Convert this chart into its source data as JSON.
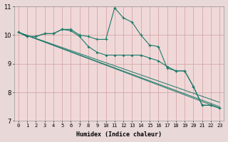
{
  "background_color": "#e8d8d8",
  "plot_bg_color": "#f0d8d8",
  "grid_color": "#d4a8a8",
  "line_color": "#1a7a6a",
  "xlabel": "Humidex (Indice chaleur)",
  "ylim": [
    7,
    11
  ],
  "xlim": [
    -0.5,
    23.5
  ],
  "yticks": [
    7,
    8,
    9,
    10,
    11
  ],
  "xticks": [
    0,
    1,
    2,
    3,
    4,
    5,
    6,
    7,
    8,
    9,
    10,
    11,
    12,
    13,
    14,
    15,
    16,
    17,
    18,
    19,
    20,
    21,
    22,
    23
  ],
  "line1_x": [
    0,
    1,
    2,
    3,
    4,
    5,
    6,
    7,
    8,
    9,
    10,
    11,
    12,
    13,
    14,
    15,
    16,
    17,
    18,
    19,
    20,
    21,
    22,
    23
  ],
  "line1_y": [
    10.1,
    9.95,
    9.95,
    10.05,
    10.05,
    10.2,
    10.2,
    10.0,
    9.95,
    9.85,
    9.85,
    10.95,
    10.6,
    10.45,
    10.0,
    9.65,
    9.6,
    8.85,
    8.75,
    8.75,
    8.2,
    7.55,
    7.55,
    7.45
  ],
  "line2_x": [
    0,
    1,
    2,
    3,
    4,
    5,
    6,
    7,
    8,
    9,
    10,
    11,
    12,
    13,
    14,
    15,
    16,
    17,
    18,
    19,
    20,
    21,
    22,
    23
  ],
  "line2_y": [
    10.1,
    9.95,
    9.95,
    10.05,
    10.05,
    10.2,
    10.15,
    9.95,
    9.6,
    9.4,
    9.3,
    9.3,
    9.3,
    9.3,
    9.3,
    9.2,
    9.1,
    8.9,
    8.75,
    8.75,
    8.2,
    7.55,
    7.55,
    7.45
  ],
  "line3_x": [
    0,
    23
  ],
  "line3_y": [
    10.1,
    7.5
  ],
  "line4_x": [
    0,
    23
  ],
  "line4_y": [
    10.1,
    7.65
  ],
  "line5_x": [
    0,
    23
  ],
  "line5_y": [
    10.1,
    7.45
  ]
}
